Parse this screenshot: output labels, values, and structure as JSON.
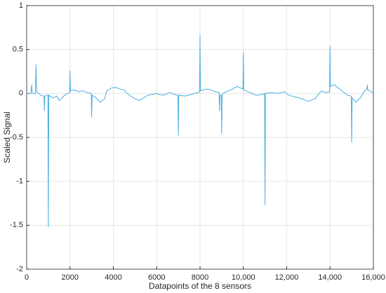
{
  "chart_data": {
    "type": "line",
    "xlabel": "Datapoints of the 8 sensors",
    "ylabel": "Scaled Signal",
    "color": "#4aaee0",
    "grid": true,
    "xlim": [
      0,
      16000
    ],
    "ylim": [
      -2,
      1
    ],
    "xticks": [
      0,
      2000,
      4000,
      6000,
      8000,
      {
        "value": 10000,
        "label": "10,000"
      },
      {
        "value": 12000,
        "label": "12,000"
      },
      {
        "value": 14000,
        "label": "14,000"
      },
      {
        "value": 16000,
        "label": "16,000"
      }
    ],
    "yticks": [
      -2,
      -1.5,
      -1,
      -0.5,
      0,
      0.5,
      1
    ],
    "x": [
      0,
      200,
      230,
      260,
      400,
      430,
      460,
      600,
      650,
      800,
      820,
      840,
      980,
      1000,
      1020,
      1200,
      1400,
      1500,
      1800,
      1980,
      2000,
      2020,
      2200,
      2400,
      2600,
      2800,
      2980,
      3000,
      3020,
      3200,
      3400,
      3600,
      3700,
      3900,
      4100,
      4300,
      4500,
      4600,
      4800,
      5000,
      5200,
      5400,
      5600,
      5800,
      6000,
      6300,
      6600,
      6800,
      6980,
      7000,
      7020,
      7300,
      7600,
      7900,
      7980,
      8000,
      8020,
      8300,
      8500,
      8700,
      8880,
      8900,
      8920,
      8980,
      9000,
      9020,
      9200,
      9500,
      9700,
      9900,
      9980,
      10000,
      10020,
      10300,
      10600,
      10900,
      10980,
      11000,
      11020,
      11300,
      11600,
      11900,
      12100,
      12400,
      12700,
      13000,
      13300,
      13600,
      13800,
      13980,
      14000,
      14020,
      14200,
      14400,
      14600,
      14800,
      14980,
      15000,
      15020,
      15200,
      15400,
      15600,
      15700,
      15720,
      15740,
      15900,
      16000
    ],
    "values": [
      0,
      0,
      0.1,
      0,
      0,
      0.33,
      0.02,
      -0.01,
      -0.02,
      -0.03,
      -0.2,
      -0.03,
      -0.02,
      -1.52,
      -0.02,
      -0.05,
      -0.03,
      -0.08,
      -0.01,
      0.01,
      0.26,
      0.03,
      0.04,
      0.02,
      0.03,
      0.01,
      0,
      -0.27,
      -0.02,
      -0.05,
      -0.1,
      -0.06,
      0.03,
      0.06,
      0.07,
      0.05,
      0.04,
      0.01,
      -0.03,
      -0.06,
      -0.08,
      -0.05,
      -0.02,
      -0.01,
      0,
      -0.02,
      0.01,
      -0.01,
      -0.02,
      -0.48,
      -0.02,
      -0.03,
      -0.01,
      0.01,
      0.02,
      0.67,
      0.03,
      0.05,
      0.04,
      0.02,
      0.01,
      -0.2,
      -0.02,
      -0.02,
      -0.46,
      -0.01,
      0.02,
      0.05,
      0.08,
      0.06,
      0.05,
      0.47,
      0.04,
      0.01,
      -0.02,
      -0.01,
      0,
      -1.27,
      0,
      0.01,
      0,
      0.02,
      -0.02,
      -0.04,
      -0.06,
      -0.09,
      -0.06,
      0.03,
      0.01,
      0.02,
      0.54,
      0.08,
      0.1,
      0.06,
      0.02,
      -0.02,
      -0.03,
      -0.56,
      -0.05,
      -0.1,
      -0.05,
      0.03,
      0.05,
      0.1,
      0.04,
      0.02,
      0.01
    ]
  }
}
